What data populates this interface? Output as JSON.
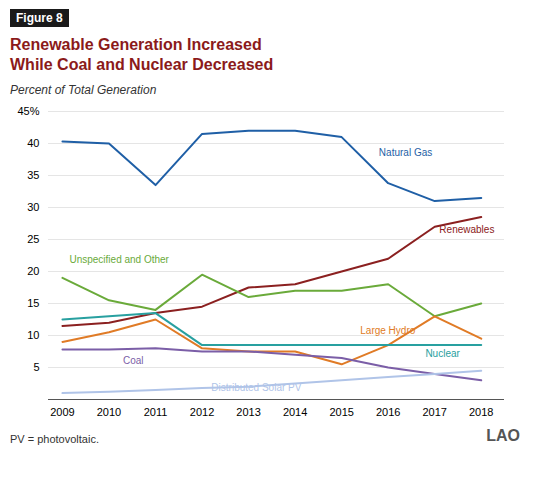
{
  "chart_data": {
    "type": "line",
    "figure_label": "Figure 8",
    "title": "Renewable Generation Increased\nWhile Coal and Nuclear Decreased",
    "subtitle": "Percent of Total Generation",
    "footnote": "PV = photovoltaic.",
    "logo": "LAO",
    "x": [
      2009,
      2010,
      2011,
      2012,
      2013,
      2014,
      2015,
      2016,
      2017,
      2018
    ],
    "series": [
      {
        "name": "Natural Gas",
        "color": "#1f5fa6",
        "values": [
          40.3,
          40.0,
          33.5,
          41.5,
          42.0,
          42.0,
          41.0,
          33.8,
          31.0,
          31.5
        ]
      },
      {
        "name": "Renewables",
        "color": "#8b2020",
        "values": [
          11.5,
          12.0,
          13.5,
          14.5,
          17.5,
          18.0,
          20.0,
          22.0,
          27.0,
          28.5
        ]
      },
      {
        "name": "Unspecified and Other",
        "color": "#6aaa3a",
        "values": [
          19.0,
          15.5,
          14.0,
          19.5,
          16.0,
          17.0,
          17.0,
          18.0,
          13.0,
          15.0
        ]
      },
      {
        "name": "Large Hydro",
        "color": "#e07b26",
        "values": [
          9.0,
          10.5,
          12.5,
          8.0,
          7.5,
          7.5,
          5.5,
          8.5,
          13.0,
          9.5
        ]
      },
      {
        "name": "Nuclear",
        "color": "#28a0a0",
        "values": [
          12.5,
          13.0,
          13.5,
          8.5,
          8.5,
          8.5,
          8.5,
          8.5,
          8.5,
          8.5
        ]
      },
      {
        "name": "Coal",
        "color": "#7b5ea7",
        "values": [
          7.8,
          7.8,
          8.0,
          7.5,
          7.5,
          7.0,
          6.5,
          5.0,
          4.0,
          3.0
        ]
      },
      {
        "name": "Distributed Solar PV",
        "color": "#b0c4e8",
        "values": [
          1.0,
          1.2,
          1.5,
          1.8,
          2.0,
          2.5,
          3.0,
          3.5,
          4.0,
          4.5
        ]
      }
    ],
    "xlim": [
      2008.7,
      2018.5
    ],
    "xticks": [
      2009,
      2010,
      2011,
      2012,
      2013,
      2014,
      2015,
      2016,
      2017,
      2018
    ],
    "ylim": [
      0,
      45
    ],
    "yticks": [
      {
        "value": 0,
        "label": ""
      },
      5,
      10,
      15,
      20,
      25,
      30,
      35,
      40,
      {
        "value": 45,
        "label": "45%"
      }
    ],
    "grid": true
  }
}
